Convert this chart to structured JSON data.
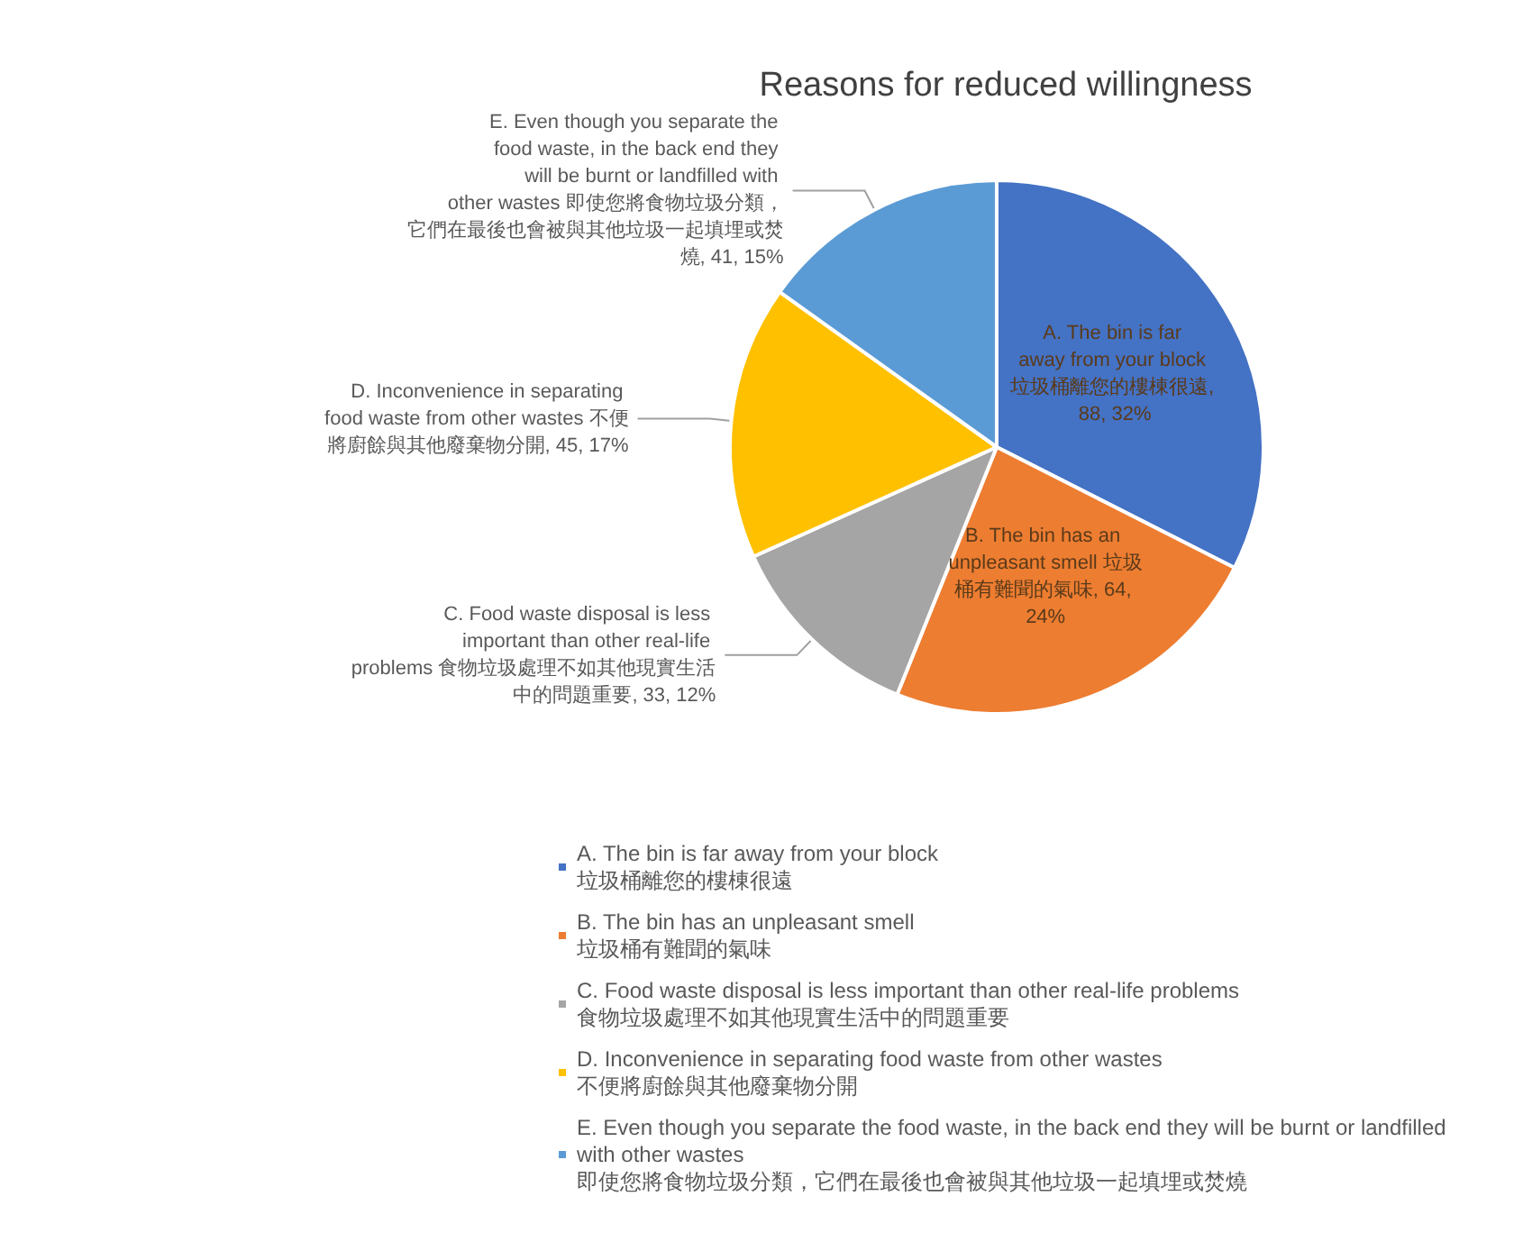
{
  "chart_data": {
    "type": "pie",
    "title": "Reasons for reduced willingness",
    "categories": [
      "A. The bin is far away from your block\n垃圾桶離您的樓棟很遠",
      "B. The bin has an unpleasant smell\n垃圾桶有難聞的氣味",
      "C. Food waste disposal is less important than other real-life problems\n食物垃圾處理不如其他現實生活中的問題重要",
      "D. Inconvenience in separating food waste from other wastes\n不便將廚餘與其他廢棄物分開",
      "E. Even though you separate the food waste, in the back end they will be burnt or landfilled with other wastes\n即使您將食物垃圾分類，它們在最後也會被與其他垃圾一起填埋或焚燒"
    ],
    "values": [
      88,
      64,
      33,
      45,
      41
    ],
    "value_labels": [
      "A. The bin is far away from your block 垃圾桶離您的樓棟很遠, 88, 32%",
      "B. The bin has an unpleasant smell 垃圾桶有難聞的氣味, 64, 24%",
      "C. Food waste disposal is less important than other real-life problems 食物垃圾處理不如其他現實生活中的問題重要, 33, 12%",
      "D. Inconvenience in separating food waste from other wastes 不便將廚餘與其他廢棄物分開, 45, 17%",
      "E. Even though you separate the food waste, in the back end they will be burnt or landfilled with other wastes 即使您將食物垃圾分類，它們在最後也會被與其他垃圾一起填埋或焚燒, 41, 15%"
    ],
    "colors": [
      "#4472c4",
      "#ed7d31",
      "#a5a5a5",
      "#ffc000",
      "#5b9bd5"
    ],
    "legend": "bottom"
  }
}
